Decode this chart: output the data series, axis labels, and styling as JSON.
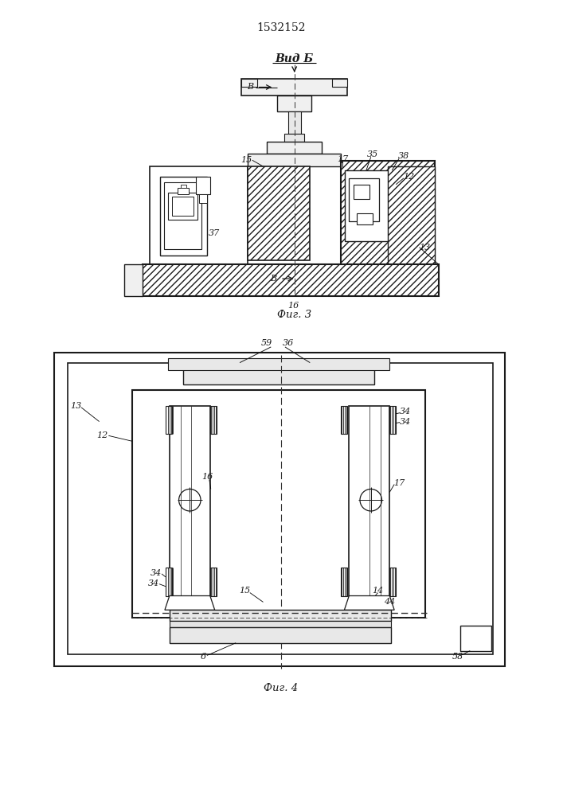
{
  "title": "1532152",
  "title_fontsize": 10,
  "fig3_label": "Вид Б",
  "fig3_caption": "Фиг. 3",
  "fig4_caption": "Фиг. 4",
  "bg_color": "#ffffff",
  "line_color": "#1a1a1a"
}
